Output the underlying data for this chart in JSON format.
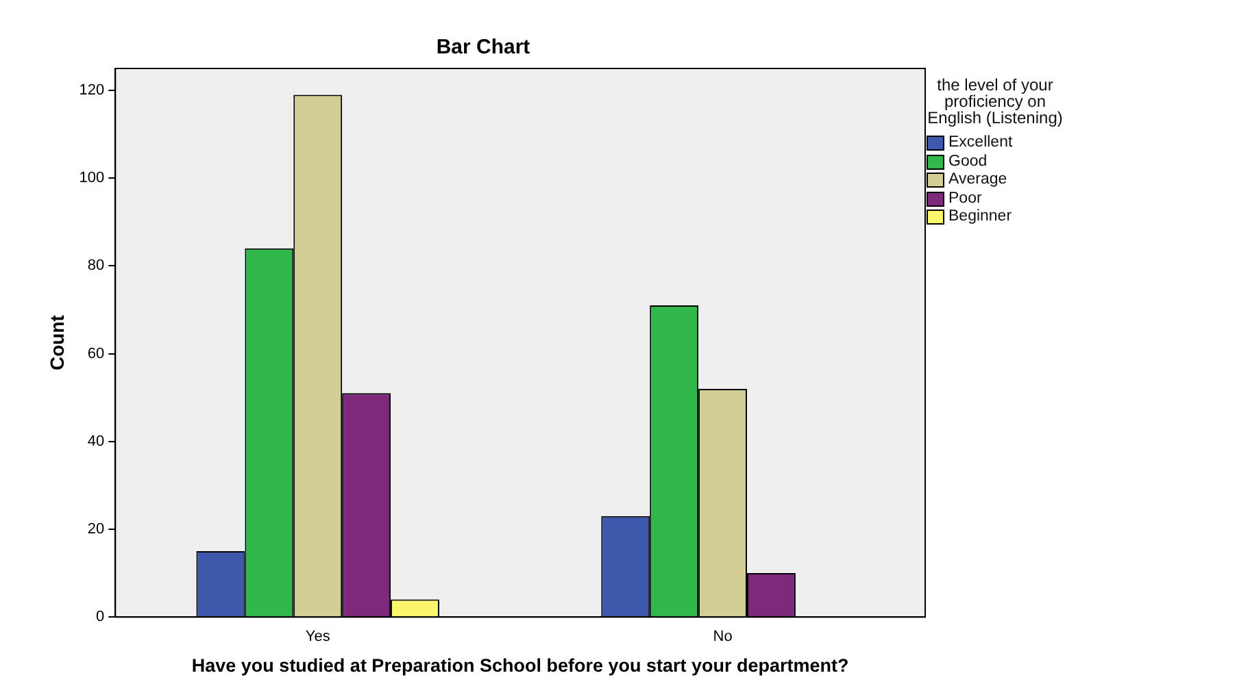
{
  "chart_data": {
    "type": "bar",
    "title": "Bar Chart",
    "xlabel": "Have you studied at Preparation School before you start your department?",
    "ylabel": "Count",
    "legend_title": "the level of your proficiency on English (Listening)",
    "categories": [
      "Yes",
      "No"
    ],
    "series": [
      {
        "name": "Excellent",
        "color": "#3e58ac",
        "values": [
          15,
          23
        ]
      },
      {
        "name": "Good",
        "color": "#30b84a",
        "values": [
          84,
          71
        ]
      },
      {
        "name": "Average",
        "color": "#d3cd96",
        "values": [
          119,
          52
        ]
      },
      {
        "name": "Poor",
        "color": "#7d2a7b",
        "values": [
          51,
          10
        ]
      },
      {
        "name": "Beginner",
        "color": "#fbf66c",
        "values": [
          4,
          null
        ]
      }
    ],
    "ylim": [
      0,
      125
    ],
    "yticks": [
      0,
      20,
      40,
      60,
      80,
      100,
      120
    ],
    "grid": false,
    "legend": "right"
  }
}
